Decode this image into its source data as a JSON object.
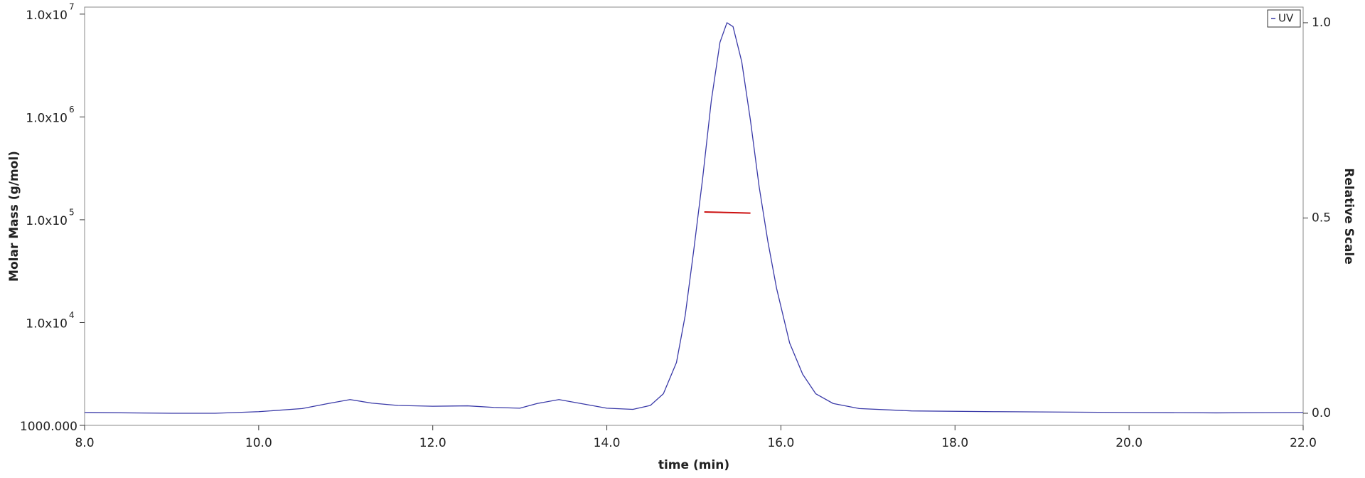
{
  "chart_data": {
    "type": "line",
    "xlabel": "time (min)",
    "ylabel": "Molar Mass (g/mol)",
    "y2label": "Relative Scale",
    "xlim": [
      8,
      22
    ],
    "xticks": [
      {
        "value": 8,
        "label": "8.0"
      },
      {
        "value": 10,
        "label": "10.0"
      },
      {
        "value": 12,
        "label": "12.0"
      },
      {
        "value": 14,
        "label": "14.0"
      },
      {
        "value": 16,
        "label": "16.0"
      },
      {
        "value": 18,
        "label": "18.0"
      },
      {
        "value": 20,
        "label": "20.0"
      },
      {
        "value": 22,
        "label": "22.0"
      }
    ],
    "ylim": [
      1000,
      11700000
    ],
    "log_y": true,
    "yticks": [
      {
        "value": 1000,
        "label": "1000.000"
      },
      {
        "value": 10000,
        "label": "1.0x10",
        "sup": "4"
      },
      {
        "value": 100000,
        "label": "1.0x10",
        "sup": "5"
      },
      {
        "value": 1000000,
        "label": "1.0x10",
        "sup": "6"
      },
      {
        "value": 10000000,
        "label": "1.0x10",
        "sup": "7"
      }
    ],
    "y2lim": [
      -0.031,
      1.04
    ],
    "y2ticks": [
      {
        "value": 0,
        "label": "0.0"
      },
      {
        "value": 0.5,
        "label": "0.5"
      },
      {
        "value": 1,
        "label": "1.0"
      }
    ],
    "legend": "top-right",
    "series": [
      {
        "name": "UV",
        "color": "#3a3aa8",
        "axis": "y2",
        "x": [
          8.0,
          9.0,
          9.5,
          10.0,
          10.5,
          10.8,
          11.05,
          11.3,
          11.6,
          12.0,
          12.4,
          12.7,
          13.0,
          13.2,
          13.45,
          13.7,
          14.0,
          14.3,
          14.5,
          14.65,
          14.8,
          14.9,
          15.0,
          15.1,
          15.2,
          15.3,
          15.38,
          15.45,
          15.55,
          15.65,
          15.75,
          15.85,
          15.95,
          16.1,
          16.25,
          16.4,
          16.6,
          16.9,
          17.5,
          18.5,
          20.0,
          21.0,
          22.0
        ],
        "values": [
          0.002,
          0.0,
          0.0,
          0.004,
          0.012,
          0.025,
          0.035,
          0.026,
          0.02,
          0.018,
          0.019,
          0.015,
          0.013,
          0.025,
          0.035,
          0.025,
          0.013,
          0.01,
          0.02,
          0.05,
          0.13,
          0.25,
          0.42,
          0.6,
          0.8,
          0.95,
          1.0,
          0.99,
          0.9,
          0.75,
          0.58,
          0.44,
          0.32,
          0.18,
          0.1,
          0.05,
          0.025,
          0.012,
          0.006,
          0.004,
          0.002,
          0.001,
          0.002
        ]
      },
      {
        "color": "#cc1111",
        "axis": "y",
        "x": [
          15.12,
          15.3,
          15.5,
          15.65
        ],
        "values": [
          119000,
          118000,
          117000,
          116000
        ]
      }
    ]
  }
}
